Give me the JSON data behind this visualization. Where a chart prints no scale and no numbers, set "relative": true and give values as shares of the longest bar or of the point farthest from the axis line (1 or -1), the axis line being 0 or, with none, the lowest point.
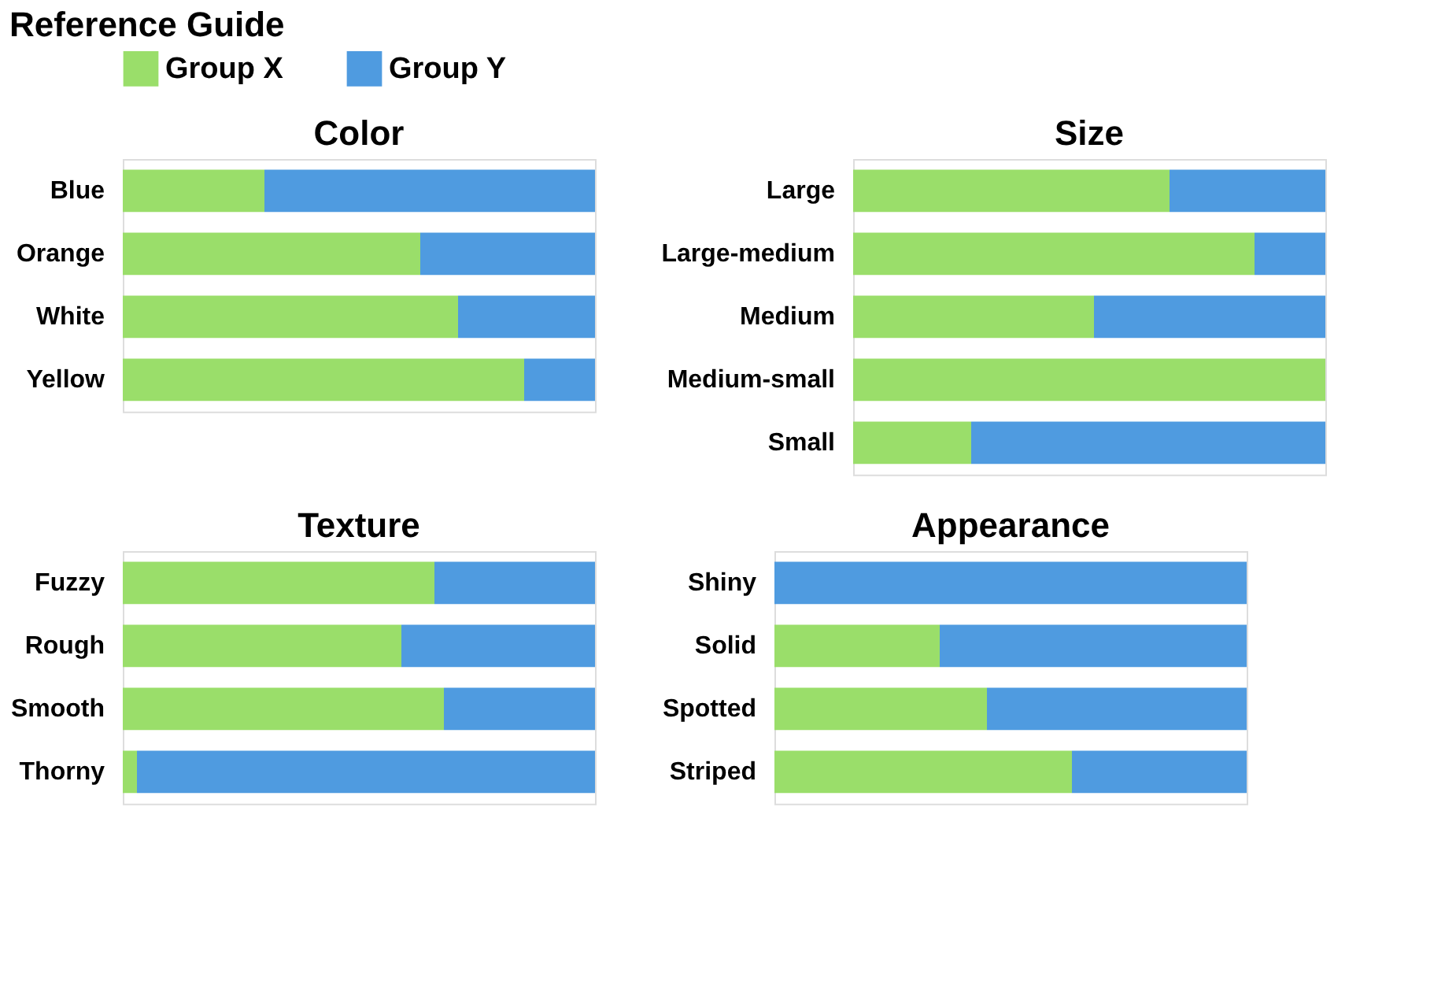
{
  "chart_data": [
    {
      "type": "bar",
      "orientation": "horizontal",
      "stacked": true,
      "relative": true,
      "title": "Color",
      "annotations": [
        "Reference Guide"
      ],
      "legend": "top",
      "categories": [
        "Blue",
        "Orange",
        "White",
        "Yellow"
      ],
      "series": [
        {
          "name": "Group X",
          "color": "#9ade6a",
          "values": [
            0.3,
            0.63,
            0.71,
            0.85
          ]
        },
        {
          "name": "Group Y",
          "color": "#4f9be0",
          "values": [
            0.7,
            0.37,
            0.29,
            0.15
          ]
        }
      ]
    },
    {
      "type": "bar",
      "orientation": "horizontal",
      "stacked": true,
      "relative": true,
      "title": "Size",
      "categories": [
        "Large",
        "Large-medium",
        "Medium",
        "Medium-small",
        "Small"
      ],
      "series": [
        {
          "name": "Group X",
          "color": "#9ade6a",
          "values": [
            0.67,
            0.85,
            0.51,
            1.0,
            0.25
          ]
        },
        {
          "name": "Group Y",
          "color": "#4f9be0",
          "values": [
            0.33,
            0.15,
            0.49,
            0.0,
            0.75
          ]
        }
      ]
    },
    {
      "type": "bar",
      "orientation": "horizontal",
      "stacked": true,
      "relative": true,
      "title": "Texture",
      "categories": [
        "Fuzzy",
        "Rough",
        "Smooth",
        "Thorny"
      ],
      "series": [
        {
          "name": "Group X",
          "color": "#9ade6a",
          "values": [
            0.66,
            0.59,
            0.68,
            0.03
          ]
        },
        {
          "name": "Group Y",
          "color": "#4f9be0",
          "values": [
            0.34,
            0.41,
            0.32,
            0.97
          ]
        }
      ]
    },
    {
      "type": "bar",
      "orientation": "horizontal",
      "stacked": true,
      "relative": true,
      "title": "Appearance",
      "categories": [
        "Shiny",
        "Solid",
        "Spotted",
        "Striped"
      ],
      "series": [
        {
          "name": "Group X",
          "color": "#9ade6a",
          "values": [
            0.0,
            0.35,
            0.45,
            0.63
          ]
        },
        {
          "name": "Group Y",
          "color": "#4f9be0",
          "values": [
            1.0,
            0.65,
            0.55,
            0.37
          ]
        }
      ]
    }
  ]
}
